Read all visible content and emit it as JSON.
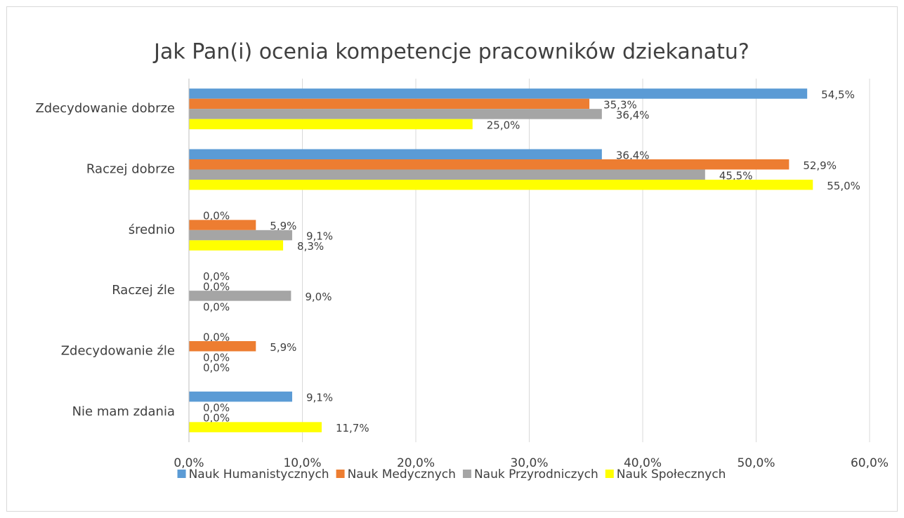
{
  "chart_data": {
    "type": "barh",
    "title": "Jak Pan(i) ocenia kompetencje pracowników dziekanatu?",
    "categories": [
      "Zdecydowanie dobrze",
      "Raczej dobrze",
      "średnio",
      "Raczej źle",
      "Zdecydowanie źle",
      "Nie mam zdania"
    ],
    "series": [
      {
        "name": "Nauk Humanistycznych",
        "color": "#5b9bd5",
        "values": [
          54.5,
          36.4,
          0,
          0,
          0,
          9.1
        ],
        "value_labels": [
          "54,5%",
          "36,4%",
          "0,0%",
          "0,0%",
          "0,0%",
          "9,1%"
        ]
      },
      {
        "name": "Nauk Medycznych",
        "color": "#ed7d31",
        "values": [
          35.3,
          52.9,
          5.9,
          0,
          5.9,
          0
        ],
        "value_labels": [
          "35,3%",
          "52,9%",
          "5,9%",
          "0,0%",
          "5,9%",
          "0,0%"
        ]
      },
      {
        "name": "Nauk Przyrodniczych",
        "color": "#a5a5a5",
        "values": [
          36.4,
          45.5,
          9.1,
          9.0,
          0,
          0
        ],
        "value_labels": [
          "36,4%",
          "45,5%",
          "9,1%",
          "9,0%",
          "0,0%",
          "0,0%"
        ]
      },
      {
        "name": "Nauk Społecznych",
        "color": "#ffff00",
        "values": [
          25.0,
          55.0,
          8.3,
          0,
          0,
          11.7
        ],
        "value_labels": [
          "25,0%",
          "55,0%",
          "8,3%",
          "0,0%",
          "0,0%",
          "11,7%"
        ]
      }
    ],
    "xlim": [
      0,
      60
    ],
    "xticks": [
      {
        "value": 0,
        "label": "0,0%"
      },
      {
        "value": 10,
        "label": "10,0%"
      },
      {
        "value": 20,
        "label": "20,0%"
      },
      {
        "value": 30,
        "label": "30,0%"
      },
      {
        "value": 40,
        "label": "40,0%"
      },
      {
        "value": 50,
        "label": "50,0%"
      },
      {
        "value": 60,
        "label": "60,0%"
      }
    ],
    "grid": true,
    "legend": "bottom"
  }
}
